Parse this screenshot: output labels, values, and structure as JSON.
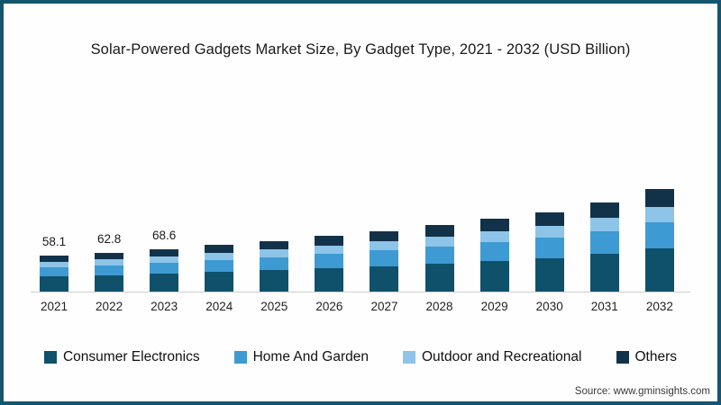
{
  "frame": {
    "border_color": "#14566e",
    "background": "#fefefe"
  },
  "source": "Source: www.gminsights.com",
  "chart_data": {
    "type": "bar",
    "stacked": true,
    "title": "Solar-Powered Gadgets Market Size, By Gadget Type, 2021 - 2032 (USD Billion)",
    "unit": "USD Billion",
    "categories": [
      "2021",
      "2022",
      "2023",
      "2024",
      "2025",
      "2026",
      "2027",
      "2028",
      "2029",
      "2030",
      "2031",
      "2032"
    ],
    "series": [
      {
        "name": "Consumer Electronics",
        "color": "#0f516b",
        "values": [
          24.4,
          26.4,
          28.8,
          31.5,
          34.4,
          37.7,
          41.2,
          45.1,
          49.3,
          53.9,
          60.5,
          69.3
        ]
      },
      {
        "name": "Home And Garden",
        "color": "#3e9ad2",
        "values": [
          15.1,
          16.3,
          17.8,
          19.5,
          21.3,
          23.3,
          25.5,
          27.9,
          30.5,
          33.4,
          37.4,
          42.9
        ]
      },
      {
        "name": "Outdoor and Recreational",
        "color": "#8dc4e8",
        "values": [
          8.7,
          9.4,
          10.3,
          11.3,
          12.3,
          13.5,
          14.7,
          16.1,
          17.6,
          19.3,
          21.6,
          24.8
        ]
      },
      {
        "name": "Others",
        "color": "#12324a",
        "values": [
          9.9,
          10.7,
          11.7,
          12.7,
          14.0,
          15.2,
          16.7,
          18.2,
          20.0,
          21.8,
          24.5,
          28.0
        ]
      }
    ],
    "totals": [
      58.1,
      62.8,
      68.6,
      75.0,
      82.0,
      89.7,
      98.1,
      107.3,
      117.4,
      128.4,
      144.0,
      165.0
    ],
    "total_labels": [
      "58.1",
      "62.8",
      "68.6",
      "",
      "",
      "",
      "",
      "",
      "",
      "",
      "",
      ""
    ],
    "ylim": [
      0,
      170
    ],
    "grid": false,
    "legend_position": "bottom",
    "axis_line_color": "#cfcfcf"
  }
}
